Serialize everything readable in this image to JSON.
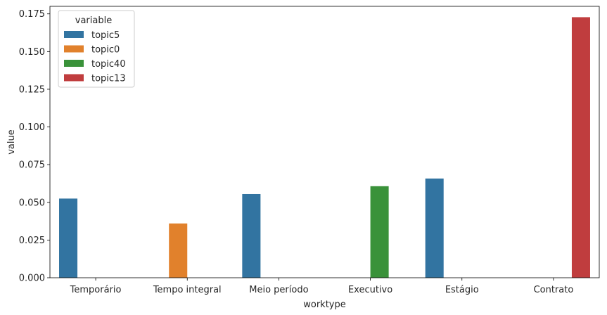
{
  "chart_data": {
    "type": "bar",
    "title": "",
    "xlabel": "worktype",
    "ylabel": "value",
    "ylim": [
      0,
      0.18
    ],
    "yticks": [
      "0.000",
      "0.025",
      "0.050",
      "0.075",
      "0.100",
      "0.125",
      "0.150",
      "0.175"
    ],
    "categories": [
      "Temporário",
      "Tempo integral",
      "Meio período",
      "Executivo",
      "Estágio",
      "Contrato"
    ],
    "series": [
      {
        "name": "topic5",
        "color": "#3274a1",
        "values": [
          0.0525,
          0,
          0.0555,
          0,
          0.0658,
          0
        ]
      },
      {
        "name": "topic0",
        "color": "#e1812c",
        "values": [
          0,
          0.036,
          0,
          0,
          0,
          0
        ]
      },
      {
        "name": "topic40",
        "color": "#3a923a",
        "values": [
          0,
          0,
          0,
          0.0607,
          0,
          0
        ]
      },
      {
        "name": "topic13",
        "color": "#c03d3e",
        "values": [
          0,
          0,
          0,
          0,
          0,
          0.1728
        ]
      }
    ],
    "legend": {
      "title": "variable",
      "position": "upper-left"
    },
    "grid": false
  }
}
